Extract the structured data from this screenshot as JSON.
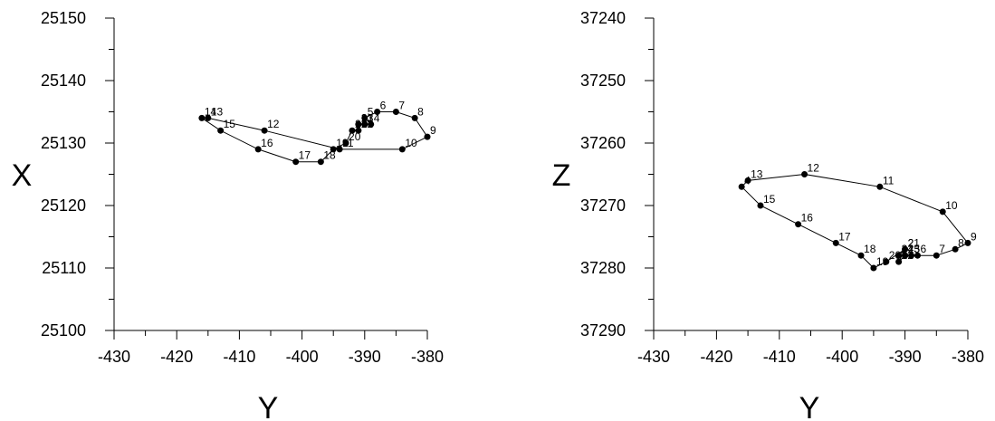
{
  "chart_data": [
    {
      "type": "line",
      "xlabel": "Y",
      "ylabel": "X",
      "xlim": [
        -430,
        -380
      ],
      "ylim": [
        25100,
        25150
      ],
      "x_inverted": false,
      "y_inverted": false,
      "x_ticks": [
        -430,
        -420,
        -410,
        -400,
        -390,
        -380
      ],
      "y_ticks": [
        25100,
        25110,
        25120,
        25130,
        25140,
        25150
      ],
      "x_tick_labels": [
        "-430",
        "-420",
        "-410",
        "-400",
        "-390",
        "-380"
      ],
      "y_tick_labels": [
        "25100",
        "25110",
        "25120",
        "25130",
        "25140",
        "25150"
      ],
      "grid": false,
      "points": [
        {
          "label": "1",
          "x": -390,
          "y": 25133
        },
        {
          "label": "2",
          "x": -391,
          "y": 25133
        },
        {
          "label": "3",
          "x": -390,
          "y": 25133
        },
        {
          "label": "4",
          "x": -389,
          "y": 25133
        },
        {
          "label": "5",
          "x": -390,
          "y": 25134
        },
        {
          "label": "6",
          "x": -388,
          "y": 25135
        },
        {
          "label": "7",
          "x": -385,
          "y": 25135
        },
        {
          "label": "8",
          "x": -382,
          "y": 25134
        },
        {
          "label": "9",
          "x": -380,
          "y": 25131
        },
        {
          "label": "10",
          "x": -384,
          "y": 25129
        },
        {
          "label": "11",
          "x": -394,
          "y": 25129
        },
        {
          "label": "12",
          "x": -406,
          "y": 25132
        },
        {
          "label": "13",
          "x": -415,
          "y": 25134
        },
        {
          "label": "14",
          "x": -416,
          "y": 25134
        },
        {
          "label": "15",
          "x": -413,
          "y": 25132
        },
        {
          "label": "16",
          "x": -407,
          "y": 25129
        },
        {
          "label": "17",
          "x": -401,
          "y": 25127
        },
        {
          "label": "18",
          "x": -397,
          "y": 25127
        },
        {
          "label": "19",
          "x": -395,
          "y": 25129
        },
        {
          "label": "20",
          "x": -393,
          "y": 25130
        },
        {
          "label": "21",
          "x": -392,
          "y": 25132
        },
        {
          "label": "22",
          "x": -391,
          "y": 25132
        },
        {
          "label": "23",
          "x": -391,
          "y": 25133
        }
      ]
    },
    {
      "type": "line",
      "xlabel": "Y",
      "ylabel": "Z",
      "xlim": [
        -430,
        -380
      ],
      "ylim": [
        37240,
        37290
      ],
      "x_inverted": false,
      "y_inverted": true,
      "x_ticks": [
        -430,
        -420,
        -410,
        -400,
        -390,
        -380
      ],
      "y_ticks": [
        37240,
        37250,
        37260,
        37270,
        37280,
        37290
      ],
      "x_tick_labels": [
        "-430",
        "-420",
        "-410",
        "-400",
        "-390",
        "-380"
      ],
      "y_tick_labels": [
        "37240",
        "37250",
        "37260",
        "37270",
        "37280",
        "37290"
      ],
      "grid": false,
      "points": [
        {
          "label": "1",
          "x": -390,
          "y": 37278
        },
        {
          "label": "2",
          "x": -390,
          "y": 37277
        },
        {
          "label": "3",
          "x": -391,
          "y": 37278
        },
        {
          "label": "4",
          "x": -390,
          "y": 37278
        },
        {
          "label": "5",
          "x": -389,
          "y": 37278
        },
        {
          "label": "6",
          "x": -388,
          "y": 37278
        },
        {
          "label": "7",
          "x": -385,
          "y": 37278
        },
        {
          "label": "8",
          "x": -382,
          "y": 37277
        },
        {
          "label": "9",
          "x": -380,
          "y": 37276
        },
        {
          "label": "10",
          "x": -384,
          "y": 37271
        },
        {
          "label": "11",
          "x": -394,
          "y": 37267
        },
        {
          "label": "12",
          "x": -406,
          "y": 37265
        },
        {
          "label": "13",
          "x": -415,
          "y": 37266
        },
        {
          "label": "4",
          "x": -416,
          "y": 37267
        },
        {
          "label": "15",
          "x": -413,
          "y": 37270
        },
        {
          "label": "16",
          "x": -407,
          "y": 37273
        },
        {
          "label": "17",
          "x": -401,
          "y": 37276
        },
        {
          "label": "18",
          "x": -397,
          "y": 37278
        },
        {
          "label": "19",
          "x": -395,
          "y": 37280
        },
        {
          "label": "20",
          "x": -393,
          "y": 37279
        },
        {
          "label": "21",
          "x": -390,
          "y": 37277
        },
        {
          "label": "22",
          "x": -391,
          "y": 37279
        },
        {
          "label": "23",
          "x": -390,
          "y": 37278
        }
      ]
    }
  ]
}
